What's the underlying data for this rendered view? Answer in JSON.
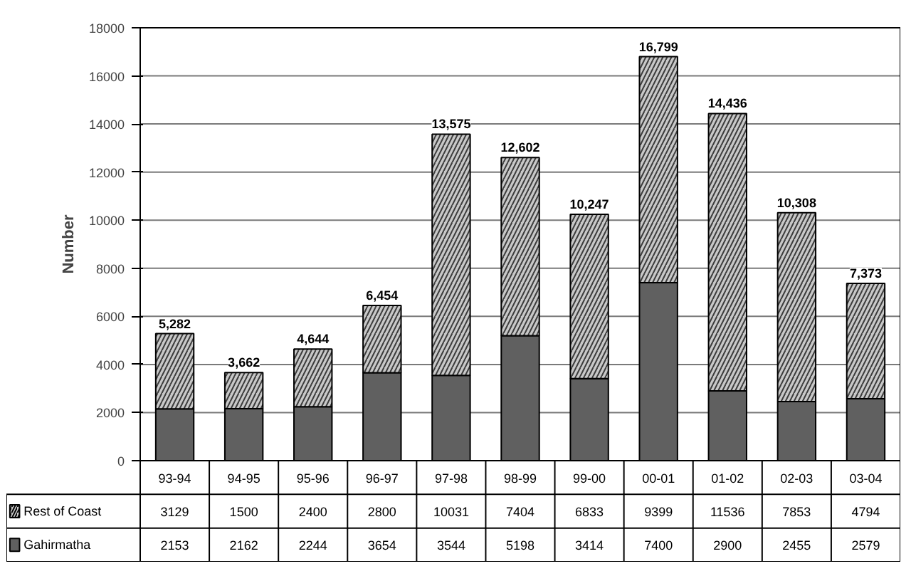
{
  "chart_data": {
    "type": "bar",
    "stacked": true,
    "ylabel": "Number",
    "categories": [
      "93-94",
      "94-95",
      "95-96",
      "96-97",
      "97-98",
      "98-99",
      "99-00",
      "00-01",
      "01-02",
      "02-03",
      "03-04"
    ],
    "series": [
      {
        "name": "Gahirmatha",
        "color": "#606060",
        "values": [
          2153,
          2162,
          2244,
          3654,
          3544,
          5198,
          3414,
          7400,
          2900,
          2455,
          2579
        ]
      },
      {
        "name": "Rest of Coast",
        "color": "#c8c8c8",
        "values": [
          3129,
          1500,
          2400,
          2800,
          10031,
          7404,
          6833,
          9399,
          11536,
          7853,
          4794
        ]
      }
    ],
    "totals": [
      "5,282",
      "3,662",
      "4,644",
      "6,454",
      "13,575",
      "12,602",
      "10,247",
      "16,799",
      "14,436",
      "10,308",
      "7,373"
    ],
    "data_labels": true,
    "ylim": [
      0,
      18000
    ],
    "yticks": [
      0,
      2000,
      4000,
      6000,
      8000,
      10000,
      12000,
      14000,
      16000,
      18000
    ],
    "grid": "y",
    "legend": "bottom"
  }
}
